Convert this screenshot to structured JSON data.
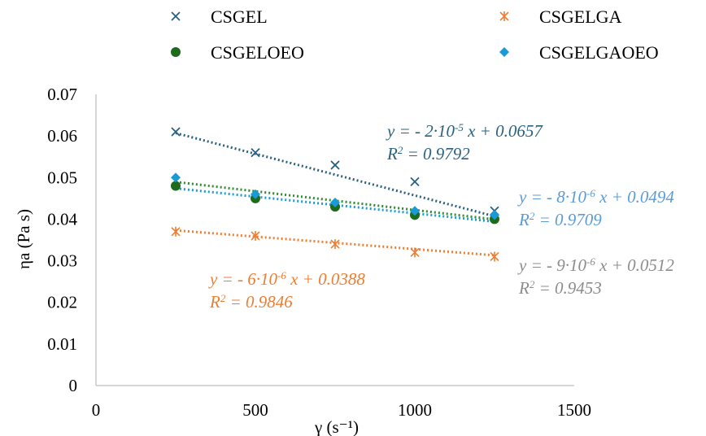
{
  "chart_data": {
    "type": "scatter",
    "title": "",
    "xlabel": "γ (s⁻¹)",
    "ylabel": "ηa (Pa s)",
    "xlim": [
      0,
      1500
    ],
    "ylim": [
      0,
      0.07
    ],
    "x_ticks": [
      "0",
      "500",
      "1000",
      "1500"
    ],
    "y_ticks": [
      "0",
      "0.01",
      "0.02",
      "0.03",
      "0.04",
      "0.05",
      "0.06",
      "0.07"
    ],
    "grid": false,
    "legend_position": "top",
    "trendlines": "linear, dotted",
    "series": [
      {
        "name": "CSGEL",
        "marker": "x",
        "color": "#2A6080",
        "x": [
          250,
          500,
          750,
          1000,
          1250
        ],
        "y": [
          0.061,
          0.056,
          0.053,
          0.049,
          0.042
        ],
        "trend": {
          "slope": -2e-05,
          "intercept": 0.0657,
          "equation": "y = - 2·10-5 x + 0.0657",
          "r2": "R2 = 0.9792",
          "color": "#2A6080"
        }
      },
      {
        "name": "CSGELGA",
        "marker": "asterisk",
        "color": "#ED7D31",
        "x": [
          250,
          500,
          750,
          1000,
          1250
        ],
        "y": [
          0.037,
          0.036,
          0.034,
          0.032,
          0.031
        ],
        "trend": {
          "slope": -6e-06,
          "intercept": 0.0388,
          "equation": "y = - 6·10-6 x + 0.0388",
          "r2": "R2 = 0.9846",
          "color": "#ED7D31"
        }
      },
      {
        "name": "CSGELOEO",
        "marker": "circle",
        "color": "#1E6B1E",
        "x": [
          250,
          500,
          750,
          1000,
          1250
        ],
        "y": [
          0.048,
          0.045,
          0.043,
          0.041,
          0.04
        ],
        "trend": {
          "slope": -9e-06,
          "intercept": 0.0512,
          "equation": "y = - 9·10-6 x + 0.0512",
          "r2": "R2 = 0.9453",
          "color": "#2E8B2E",
          "label_color": "#8C8C8C"
        }
      },
      {
        "name": "CSGELGAOEO",
        "marker": "diamond",
        "color": "#1A9AD6",
        "x": [
          250,
          500,
          750,
          1000,
          1250
        ],
        "y": [
          0.05,
          0.046,
          0.044,
          0.042,
          0.041
        ],
        "trend": {
          "slope": -8e-06,
          "intercept": 0.0494,
          "equation": "y = - 8·10-6 x + 0.0494",
          "r2": "R2 = 0.9709",
          "color": "#1A9AD6",
          "label_color": "#5B9BD5"
        }
      }
    ]
  },
  "colors": {
    "axis": "#BFBFBF",
    "text": "#000000"
  }
}
